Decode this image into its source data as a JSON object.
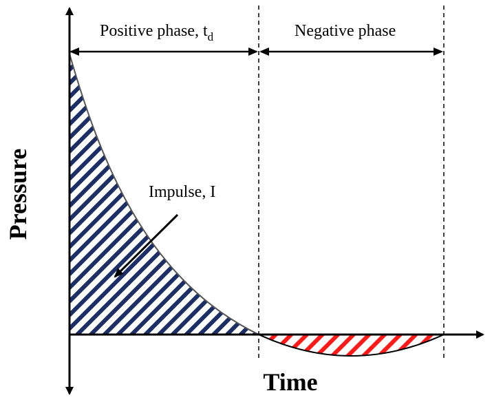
{
  "labels": {
    "positive_phase": "Positive phase, t",
    "positive_phase_subscript": "d",
    "negative_phase": "Negative phase",
    "impulse": "Impulse, I",
    "y_axis": "Pressure",
    "x_axis": "Time"
  }
}
